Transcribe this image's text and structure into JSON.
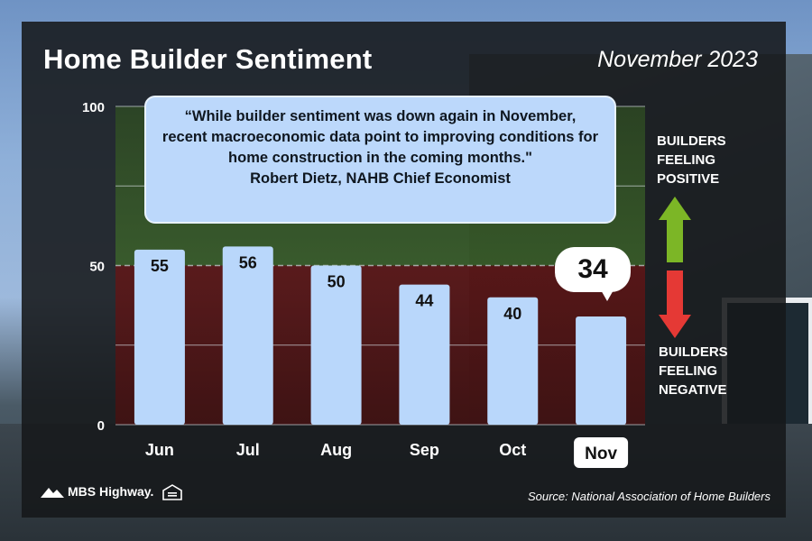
{
  "title": "Home Builder Sentiment",
  "date": "November 2023",
  "quote": {
    "text": "“While builder sentiment was down again in November, recent macroeconomic data point to improving conditions for home construction in the coming months.\"",
    "author": "Robert Dietz, NAHB Chief Economist"
  },
  "legend": {
    "positive": "BUILDERS\nFEELING\nPOSITIVE",
    "negative": "BUILDERS\nFEELING\nNEGATIVE"
  },
  "source": "Source: National Association of Home Builders",
  "brand": {
    "name": "MBS Highway."
  },
  "colors": {
    "bar": "#b9d7fb",
    "positive_zone": "#3b5f2a",
    "negative_zone": "#5a1414",
    "arrow_up": "#7cb626",
    "arrow_down": "#e53935"
  },
  "chart_data": {
    "type": "bar",
    "title": "Home Builder Sentiment",
    "categories": [
      "Jun",
      "Jul",
      "Aug",
      "Sep",
      "Oct",
      "Nov"
    ],
    "values": [
      55,
      56,
      50,
      44,
      40,
      34
    ],
    "ylim": [
      0,
      100
    ],
    "yticks": [
      0,
      50,
      100
    ],
    "gridlines": [
      25,
      50,
      75,
      100
    ],
    "highlight": "Nov",
    "threshold": 50,
    "xlabel": "",
    "ylabel": ""
  }
}
